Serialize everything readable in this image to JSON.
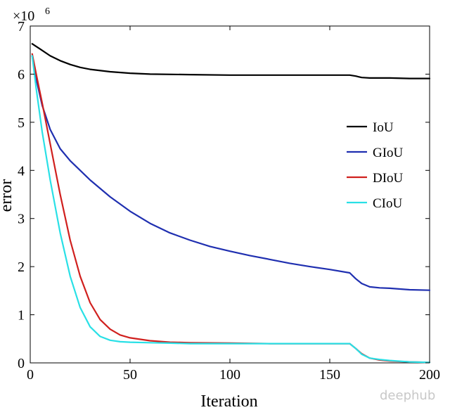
{
  "chart_data": {
    "type": "line",
    "title": "",
    "xlabel": "Iteration",
    "ylabel": "error",
    "y_multiplier": "×10",
    "y_multiplier_exp": "6",
    "xlim": [
      0,
      200
    ],
    "ylim": [
      0,
      7
    ],
    "xticks": [
      0,
      50,
      100,
      150,
      200
    ],
    "yticks": [
      0,
      1,
      2,
      3,
      4,
      5,
      6,
      7
    ],
    "grid": false,
    "legend_position": "right",
    "series": [
      {
        "name": "IoU",
        "color": "#000000",
        "points": [
          [
            1,
            6.63
          ],
          [
            5,
            6.52
          ],
          [
            10,
            6.38
          ],
          [
            15,
            6.28
          ],
          [
            20,
            6.2
          ],
          [
            25,
            6.14
          ],
          [
            30,
            6.1
          ],
          [
            40,
            6.05
          ],
          [
            50,
            6.02
          ],
          [
            60,
            6.0
          ],
          [
            80,
            5.99
          ],
          [
            100,
            5.98
          ],
          [
            120,
            5.98
          ],
          [
            140,
            5.98
          ],
          [
            150,
            5.98
          ],
          [
            160,
            5.98
          ],
          [
            163,
            5.96
          ],
          [
            166,
            5.93
          ],
          [
            170,
            5.92
          ],
          [
            180,
            5.92
          ],
          [
            190,
            5.91
          ],
          [
            200,
            5.91
          ]
        ]
      },
      {
        "name": "GIoU",
        "color": "#1f2fb0",
        "points": [
          [
            1,
            6.38
          ],
          [
            3,
            5.9
          ],
          [
            6,
            5.35
          ],
          [
            10,
            4.85
          ],
          [
            15,
            4.45
          ],
          [
            20,
            4.2
          ],
          [
            30,
            3.8
          ],
          [
            40,
            3.45
          ],
          [
            50,
            3.15
          ],
          [
            60,
            2.9
          ],
          [
            70,
            2.7
          ],
          [
            80,
            2.55
          ],
          [
            90,
            2.42
          ],
          [
            100,
            2.32
          ],
          [
            110,
            2.23
          ],
          [
            120,
            2.15
          ],
          [
            130,
            2.07
          ],
          [
            140,
            2.0
          ],
          [
            150,
            1.94
          ],
          [
            160,
            1.87
          ],
          [
            163,
            1.75
          ],
          [
            166,
            1.65
          ],
          [
            170,
            1.58
          ],
          [
            175,
            1.56
          ],
          [
            180,
            1.55
          ],
          [
            190,
            1.52
          ],
          [
            200,
            1.51
          ]
        ]
      },
      {
        "name": "DIoU",
        "color": "#d0201e",
        "points": [
          [
            1,
            6.42
          ],
          [
            3,
            6.0
          ],
          [
            6,
            5.4
          ],
          [
            10,
            4.55
          ],
          [
            15,
            3.5
          ],
          [
            20,
            2.55
          ],
          [
            25,
            1.8
          ],
          [
            30,
            1.25
          ],
          [
            35,
            0.9
          ],
          [
            40,
            0.7
          ],
          [
            45,
            0.58
          ],
          [
            50,
            0.52
          ],
          [
            60,
            0.46
          ],
          [
            70,
            0.43
          ],
          [
            80,
            0.42
          ],
          [
            100,
            0.41
          ],
          [
            120,
            0.4
          ],
          [
            140,
            0.4
          ],
          [
            150,
            0.4
          ],
          [
            160,
            0.4
          ],
          [
            163,
            0.3
          ],
          [
            166,
            0.19
          ],
          [
            170,
            0.1
          ],
          [
            175,
            0.06
          ],
          [
            180,
            0.04
          ],
          [
            190,
            0.02
          ],
          [
            200,
            0.01
          ]
        ]
      },
      {
        "name": "CIoU",
        "color": "#29e0e6",
        "points": [
          [
            1,
            6.38
          ],
          [
            3,
            5.7
          ],
          [
            6,
            4.8
          ],
          [
            10,
            3.8
          ],
          [
            15,
            2.7
          ],
          [
            20,
            1.8
          ],
          [
            25,
            1.15
          ],
          [
            30,
            0.75
          ],
          [
            35,
            0.55
          ],
          [
            40,
            0.47
          ],
          [
            45,
            0.44
          ],
          [
            50,
            0.43
          ],
          [
            60,
            0.42
          ],
          [
            70,
            0.41
          ],
          [
            80,
            0.4
          ],
          [
            100,
            0.4
          ],
          [
            120,
            0.4
          ],
          [
            140,
            0.4
          ],
          [
            150,
            0.4
          ],
          [
            160,
            0.4
          ],
          [
            163,
            0.3
          ],
          [
            166,
            0.18
          ],
          [
            170,
            0.1
          ],
          [
            175,
            0.07
          ],
          [
            180,
            0.05
          ],
          [
            190,
            0.02
          ],
          [
            200,
            0.01
          ]
        ]
      }
    ]
  },
  "watermark": "deephub"
}
